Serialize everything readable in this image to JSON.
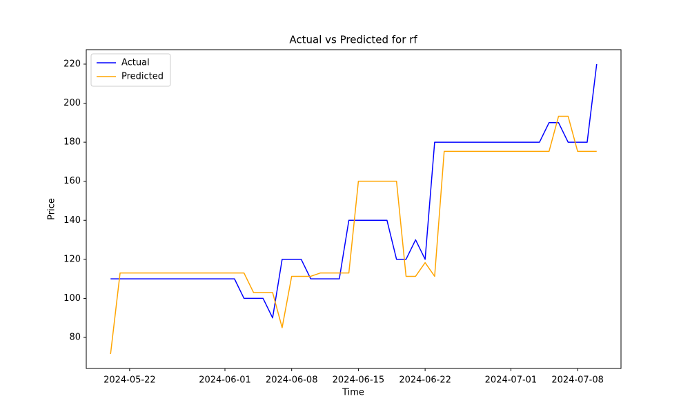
{
  "chart_data": {
    "type": "line",
    "title": "Actual vs Predicted for rf",
    "xlabel": "Time",
    "ylabel": "Price",
    "x": [
      "2024-05-20",
      "2024-05-21",
      "2024-05-22",
      "2024-05-23",
      "2024-05-24",
      "2024-05-25",
      "2024-05-26",
      "2024-05-27",
      "2024-05-28",
      "2024-05-29",
      "2024-05-30",
      "2024-05-31",
      "2024-06-01",
      "2024-06-02",
      "2024-06-03",
      "2024-06-04",
      "2024-06-05",
      "2024-06-06",
      "2024-06-07",
      "2024-06-08",
      "2024-06-09",
      "2024-06-10",
      "2024-06-11",
      "2024-06-12",
      "2024-06-13",
      "2024-06-14",
      "2024-06-15",
      "2024-06-16",
      "2024-06-17",
      "2024-06-18",
      "2024-06-19",
      "2024-06-20",
      "2024-06-21",
      "2024-06-22",
      "2024-06-23",
      "2024-06-24",
      "2024-06-25",
      "2024-06-26",
      "2024-06-27",
      "2024-06-28",
      "2024-06-29",
      "2024-06-30",
      "2024-07-01",
      "2024-07-02",
      "2024-07-03",
      "2024-07-04",
      "2024-07-05",
      "2024-07-06",
      "2024-07-07",
      "2024-07-08",
      "2024-07-09",
      "2024-07-10"
    ],
    "series": [
      {
        "name": "Actual",
        "color": "#0000ff",
        "values": [
          110,
          110,
          110,
          110,
          110,
          110,
          110,
          110,
          110,
          110,
          110,
          110,
          110,
          110,
          100,
          100,
          100,
          90,
          120,
          120,
          120,
          110,
          110,
          110,
          110,
          140,
          140,
          140,
          140,
          140,
          120,
          120,
          130,
          120,
          180,
          180,
          180,
          180,
          180,
          180,
          180,
          180,
          180,
          180,
          180,
          180,
          190,
          190,
          180,
          180,
          180,
          220
        ]
      },
      {
        "name": "Predicted",
        "color": "#ffa500",
        "values": [
          71.5,
          113,
          113,
          113,
          113,
          113,
          113,
          113,
          113,
          113,
          113,
          113,
          113,
          113,
          113,
          103,
          103,
          103,
          85,
          111.3,
          111.3,
          111.3,
          113,
          113,
          113,
          113,
          160,
          160,
          160,
          160,
          160,
          111.3,
          111.3,
          118.3,
          111.3,
          175.3,
          175.3,
          175.3,
          175.3,
          175.3,
          175.3,
          175.3,
          175.3,
          175.3,
          175.3,
          175.3,
          175.3,
          193.3,
          193.3,
          175.3,
          175.3,
          175.3
        ]
      }
    ],
    "xlim": [
      "2024-05-17T10:48",
      "2024-07-12T13:12"
    ],
    "xticks": [
      "2024-05-22",
      "2024-06-01",
      "2024-06-08",
      "2024-06-15",
      "2024-06-22",
      "2024-07-01",
      "2024-07-08"
    ],
    "ylim": [
      64.1,
      227.4
    ],
    "yticks": [
      80,
      100,
      120,
      140,
      160,
      180,
      200,
      220
    ],
    "legend": "upper left"
  }
}
